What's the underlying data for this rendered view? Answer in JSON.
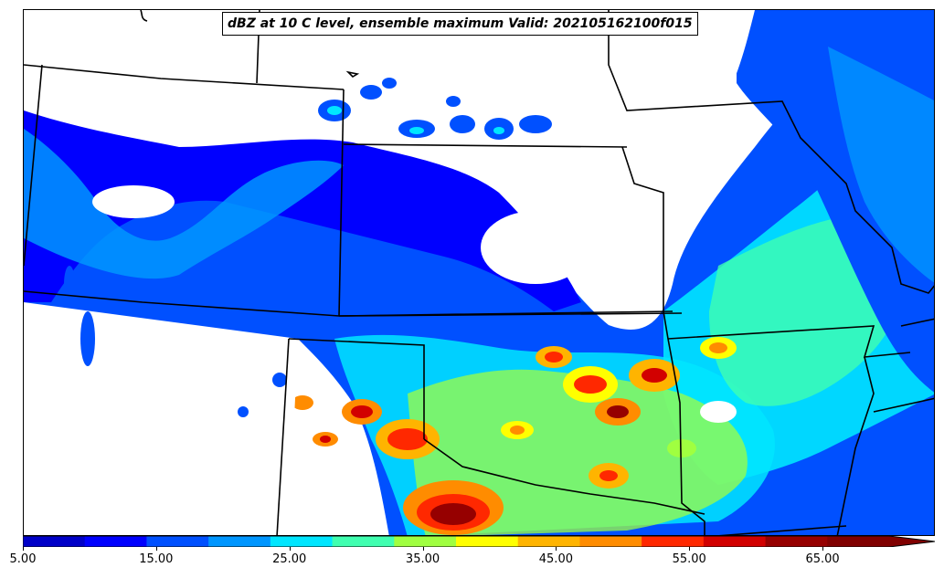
{
  "title": "dBZ at 10 C level, ensemble maximum Valid: 202105162100f015",
  "colorbar": {
    "min": 5.0,
    "max": 70.0,
    "step": 5.0,
    "extend": "max",
    "tick_labels": [
      "5.00",
      "15.00",
      "25.00",
      "35.00",
      "45.00",
      "55.00",
      "65.00"
    ],
    "tick_values": [
      5,
      15,
      25,
      35,
      45,
      55,
      65
    ],
    "colors": [
      "#0000c8",
      "#0000ff",
      "#0050ff",
      "#0096ff",
      "#00e6ff",
      "#40ffb0",
      "#a0ff40",
      "#ffff00",
      "#ffb400",
      "#ff8c00",
      "#ff2800",
      "#d20000",
      "#960000",
      "#800000"
    ]
  },
  "map": {
    "boundary_color": "#000000",
    "background": "#ffffff"
  }
}
